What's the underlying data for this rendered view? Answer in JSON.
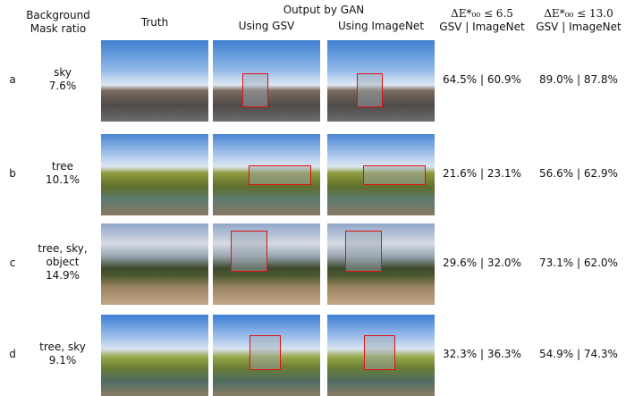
{
  "headers": {
    "background": "Background",
    "mask_ratio": "Mask ratio",
    "truth": "Truth",
    "output_by_gan": "Output by GAN",
    "using_gsv": "Using GSV",
    "using_imagenet": "Using ImageNet",
    "metric1": "ΔE*₀₀ ≤ 6.5",
    "metric2": "ΔE*₀₀ ≤ 13.0",
    "metric_sub": "GSV | ImageNet"
  },
  "rows": [
    {
      "id": "a",
      "background": "sky",
      "ratio": "7.6%",
      "m1": "64.5% | 60.9%",
      "m2": "89.0% | 87.8%"
    },
    {
      "id": "b",
      "background": "tree",
      "ratio": "10.1%",
      "m1": "21.6% | 23.1%",
      "m2": "56.6% | 62.9%"
    },
    {
      "id": "c",
      "background": "tree, sky, object",
      "ratio": "14.9%",
      "m1": "29.6% | 32.0%",
      "m2": "73.1% | 62.0%"
    },
    {
      "id": "d",
      "background": "tree, sky",
      "ratio": "9.1%",
      "m1": "32.3% | 36.3%",
      "m2": "54.9% | 74.3%"
    }
  ],
  "colors": {
    "mask_box": "#e01010"
  }
}
